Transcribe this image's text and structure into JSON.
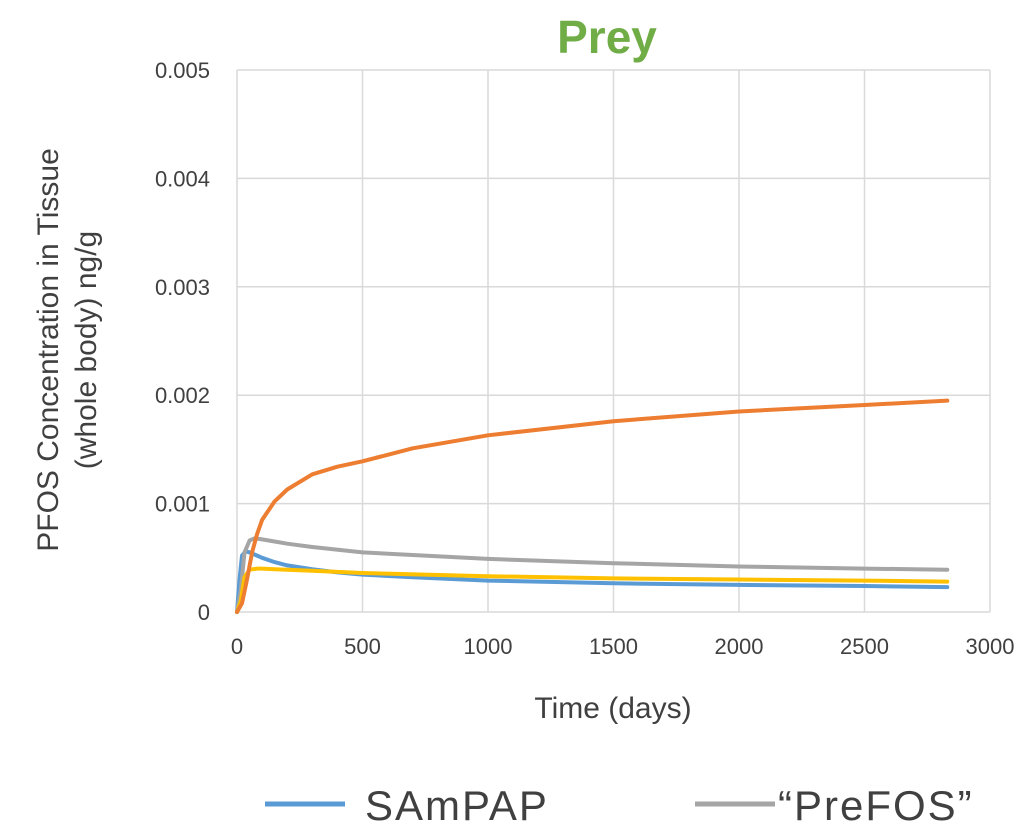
{
  "chart_data": {
    "type": "line",
    "title": "Prey",
    "title_color": "#70AD47",
    "xlabel": "Time (days)",
    "ylabel_lines": [
      "PFOS Concentration in Tissue",
      "(whole body) ng/g"
    ],
    "xlim": [
      0,
      3000
    ],
    "ylim": [
      0,
      0.005
    ],
    "x_ticks": [
      0,
      500,
      1000,
      1500,
      2000,
      2500,
      3000
    ],
    "x_tick_labels": [
      "0",
      "500",
      "1000",
      "1500",
      "2000",
      "2500",
      "3000"
    ],
    "y_ticks": [
      0,
      0.001,
      0.002,
      0.003,
      0.004,
      0.005
    ],
    "y_tick_labels": [
      "0",
      "0.001",
      "0.002",
      "0.003",
      "0.004",
      "0.005"
    ],
    "grid": true,
    "legend_position": "bottom",
    "series": [
      {
        "name": "SAmPAP",
        "color": "#5B9BD5",
        "x": [
          0,
          10,
          20,
          35,
          50,
          80,
          100,
          150,
          200,
          300,
          400,
          500,
          700,
          1000,
          1500,
          2000,
          2500,
          2830
        ],
        "y": [
          0,
          0.0003,
          0.00052,
          0.00056,
          0.00055,
          0.00052,
          0.0005,
          0.00046,
          0.00043,
          0.000395,
          0.000365,
          0.000345,
          0.00032,
          0.00029,
          0.000265,
          0.00025,
          0.00024,
          0.00023
        ]
      },
      {
        "name": "“PreFOS”",
        "color": "#A5A5A5",
        "x": [
          0,
          15,
          30,
          50,
          70,
          100,
          150,
          200,
          300,
          500,
          1000,
          1500,
          2000,
          2500,
          2830
        ],
        "y": [
          0,
          0.0002,
          0.00055,
          0.00066,
          0.00068,
          0.00067,
          0.00065,
          0.00063,
          0.0006,
          0.00055,
          0.00049,
          0.00045,
          0.00042,
          0.0004,
          0.00039
        ]
      },
      {
        "name": "",
        "color": "#FFC000",
        "x": [
          0,
          15,
          30,
          50,
          80,
          100,
          150,
          200,
          300,
          500,
          1000,
          1500,
          2000,
          2500,
          2830
        ],
        "y": [
          0,
          0.0001,
          0.00032,
          0.00039,
          0.0004,
          0.0004,
          0.000395,
          0.00039,
          0.00038,
          0.00036,
          0.00033,
          0.00031,
          0.0003,
          0.00029,
          0.00028
        ]
      },
      {
        "name": "",
        "color": "#ED7D31",
        "x": [
          0,
          20,
          40,
          60,
          80,
          100,
          150,
          200,
          300,
          400,
          500,
          700,
          1000,
          1500,
          2000,
          2500,
          2830
        ],
        "y": [
          0,
          8e-05,
          0.0003,
          0.00055,
          0.00072,
          0.00085,
          0.00102,
          0.00113,
          0.00127,
          0.00134,
          0.00139,
          0.00151,
          0.00163,
          0.00176,
          0.00185,
          0.00191,
          0.00195
        ]
      }
    ]
  }
}
